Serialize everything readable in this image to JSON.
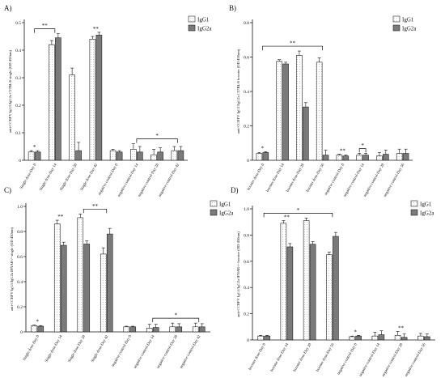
{
  "colors": {
    "igg1_fill": "#ffffff",
    "igg2a_fill": "#7a7a7a",
    "stroke": "#222222"
  },
  "chart_data": [
    {
      "panel": "A)",
      "type": "bar",
      "ylabel": "anti-CCHFV IgG1/IgG2a C57BL/6 single (OD 450nm)",
      "ylim": [
        0,
        0.5
      ],
      "yticks": [
        0,
        0.1,
        0.2,
        0.3,
        0.4,
        0.5
      ],
      "categories": [
        "Single dose-Day 0",
        "Single dose-Day 14",
        "Single dose-Day 28",
        "Single dose-Day 42",
        "negative control-Day 0",
        "negative control-Day 14",
        "negative control-Day 28",
        "negative control-Day 42"
      ],
      "series": [
        {
          "name": "IgG1",
          "values": [
            0.03,
            0.42,
            0.31,
            0.44,
            0.035,
            0.04,
            0.02,
            0.035
          ],
          "errors": [
            0.005,
            0.015,
            0.025,
            0.01,
            0.005,
            0.02,
            0.02,
            0.015
          ]
        },
        {
          "name": "IgG2a",
          "values": [
            0.03,
            0.445,
            0.035,
            0.455,
            0.03,
            0.03,
            0.03,
            0.035
          ],
          "errors": [
            0.005,
            0.015,
            0.03,
            0.01,
            0.005,
            0.02,
            0.015,
            0.015
          ]
        }
      ],
      "annotations": [
        {
          "text": "*",
          "type": "star",
          "x": 0
        },
        {
          "text": "**",
          "type": "bracket",
          "from": 0,
          "to": 1
        },
        {
          "text": "**",
          "type": "star",
          "x": 3
        },
        {
          "text": "*",
          "type": "bracket",
          "from": 5,
          "to": 7
        }
      ]
    },
    {
      "panel": "B)",
      "type": "bar",
      "ylabel": "anti-CCHFV IgG1/IgG2a C57BL/6 booster (OD 450nm)",
      "ylim": [
        0,
        0.8
      ],
      "yticks": [
        0,
        0.2,
        0.4,
        0.6,
        0.8
      ],
      "categories": [
        "booster dose-Day 0",
        "booster dose-Day 14",
        "booster dose-Day 28",
        "booster dose-Day 56",
        "negative control-Day 0",
        "negative control-Day 14",
        "negative control-Day 28",
        "negative control-Day 56"
      ],
      "series": [
        {
          "name": "IgG1",
          "values": [
            0.04,
            0.575,
            0.61,
            0.57,
            0.03,
            0.03,
            0.025,
            0.04
          ],
          "errors": [
            0.005,
            0.01,
            0.025,
            0.025,
            0.005,
            0.01,
            0.02,
            0.025
          ]
        },
        {
          "name": "IgG2a",
          "values": [
            0.045,
            0.56,
            0.31,
            0.03,
            0.025,
            0.03,
            0.035,
            0.04
          ],
          "errors": [
            0.005,
            0.01,
            0.025,
            0.03,
            0.005,
            0.01,
            0.025,
            0.025
          ]
        }
      ],
      "annotations": [
        {
          "text": "*",
          "type": "star",
          "x": 0
        },
        {
          "text": "**",
          "type": "bracket",
          "from": 0,
          "to": 3
        },
        {
          "text": "**",
          "type": "star",
          "x": 4
        },
        {
          "text": "*",
          "type": "bracket",
          "from": 5,
          "to": 5
        }
      ]
    },
    {
      "panel": "C)",
      "type": "bar",
      "ylabel": "anti-CCHFV IgG1/IgG2a IFNAR-/- single (OD 450nm)",
      "ylim": [
        0,
        1.0
      ],
      "yticks": [
        0,
        0.2,
        0.4,
        0.6,
        0.8,
        1.0
      ],
      "categories": [
        "Single dose-Day 0",
        "Single dose-Day 14",
        "Single dose-Day 28",
        "Single dose-Day 42",
        "negative control-Day 0",
        "negative control-Day 14",
        "negative control-Day 28",
        "negative control-Day 42"
      ],
      "series": [
        {
          "name": "IgG1",
          "values": [
            0.05,
            0.86,
            0.91,
            0.62,
            0.04,
            0.03,
            0.04,
            0.04
          ],
          "errors": [
            0.005,
            0.03,
            0.03,
            0.05,
            0.005,
            0.03,
            0.03,
            0.03
          ]
        },
        {
          "name": "IgG2a",
          "values": [
            0.045,
            0.69,
            0.7,
            0.78,
            0.04,
            0.035,
            0.04,
            0.04
          ],
          "errors": [
            0.005,
            0.025,
            0.025,
            0.045,
            0.005,
            0.025,
            0.025,
            0.025
          ]
        }
      ],
      "annotations": [
        {
          "text": "*",
          "type": "star",
          "x": 0
        },
        {
          "text": "**",
          "type": "star",
          "x": 1
        },
        {
          "text": "**",
          "type": "bracket",
          "from": 2,
          "to": 3
        },
        {
          "text": "*",
          "type": "bracket",
          "from": 5,
          "to": 7
        }
      ]
    },
    {
      "panel": "D)",
      "type": "bar",
      "ylabel": "anti-CCHFV IgG1/IgG2a IFNAR-/- booster (OD 450nm)",
      "ylim": [
        0,
        1.0
      ],
      "yticks": [
        0,
        0.2,
        0.4,
        0.6,
        0.8,
        1.0
      ],
      "categories": [
        "booster dose-Day 0",
        "booster dose-Day 14",
        "booster dose-Day 28",
        "booster dose-Day 56",
        "negative control-Day 0",
        "negative control-Day 14",
        "negative control-Day 28",
        "negative control-Day 56"
      ],
      "series": [
        {
          "name": "IgG1",
          "values": [
            0.03,
            0.89,
            0.91,
            0.65,
            0.025,
            0.03,
            0.035,
            0.03
          ],
          "errors": [
            0.005,
            0.02,
            0.02,
            0.02,
            0.005,
            0.03,
            0.03,
            0.02
          ]
        },
        {
          "name": "IgG2a",
          "values": [
            0.03,
            0.71,
            0.73,
            0.79,
            0.03,
            0.04,
            0.02,
            0.025
          ],
          "errors": [
            0.005,
            0.025,
            0.02,
            0.03,
            0.005,
            0.03,
            0.025,
            0.02
          ]
        }
      ],
      "annotations": [
        {
          "text": "*",
          "type": "bracket",
          "from": 0,
          "to": 3
        },
        {
          "text": "**",
          "type": "star",
          "x": 1
        },
        {
          "text": "*",
          "type": "star",
          "x": 4
        },
        {
          "text": "**",
          "type": "star",
          "x": 6
        }
      ]
    }
  ]
}
